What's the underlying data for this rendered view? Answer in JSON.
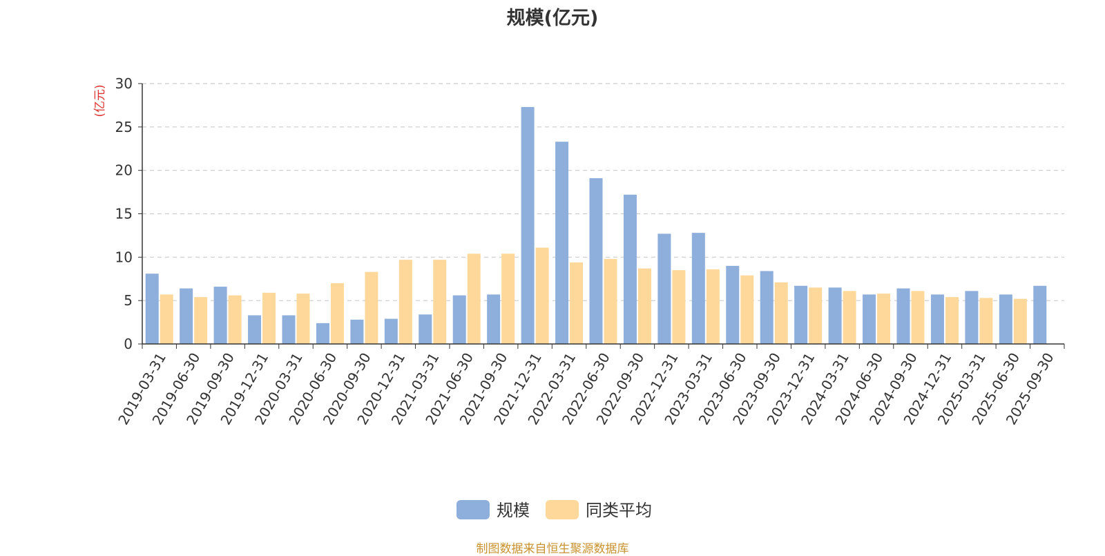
{
  "chart_data": {
    "type": "bar",
    "title": "规模(亿元)",
    "ylabel": "(亿元)",
    "xlabel": "",
    "ylim": [
      0,
      30
    ],
    "yticks": [
      0,
      5,
      10,
      15,
      20,
      25,
      30
    ],
    "grid": true,
    "legend_position": "bottom-center",
    "categories": [
      "2019-03-31",
      "2019-06-30",
      "2019-09-30",
      "2019-12-31",
      "2020-03-31",
      "2020-06-30",
      "2020-09-30",
      "2020-12-31",
      "2021-03-31",
      "2021-06-30",
      "2021-09-30",
      "2021-12-31",
      "2022-03-31",
      "2022-06-30",
      "2022-09-30",
      "2022-12-31",
      "2023-03-31",
      "2023-06-30",
      "2023-09-30",
      "2023-12-31",
      "2024-03-31",
      "2024-06-30",
      "2024-09-30",
      "2024-12-31",
      "2025-03-31",
      "2025-06-30",
      "2025-09-30"
    ],
    "series": [
      {
        "name": "规模",
        "color": "#8eaedb",
        "values": [
          8.1,
          6.4,
          6.6,
          3.3,
          3.3,
          2.4,
          2.8,
          2.9,
          3.4,
          5.6,
          5.7,
          27.3,
          23.3,
          19.1,
          17.2,
          12.7,
          12.8,
          9.0,
          8.4,
          6.7,
          6.5,
          5.7,
          6.4,
          5.7,
          6.1,
          5.7,
          6.7
        ]
      },
      {
        "name": "同类平均",
        "color": "#fdd89a",
        "values": [
          5.7,
          5.4,
          5.6,
          5.9,
          5.8,
          7.0,
          8.3,
          9.7,
          9.7,
          10.4,
          10.4,
          11.1,
          9.4,
          9.8,
          8.7,
          8.5,
          8.6,
          7.9,
          7.1,
          6.5,
          6.1,
          5.8,
          6.1,
          5.4,
          5.3,
          5.2,
          null
        ]
      }
    ]
  },
  "ui": {
    "unit_color": "#e03030",
    "source_note": "制图数据来自恒生聚源数据库"
  }
}
